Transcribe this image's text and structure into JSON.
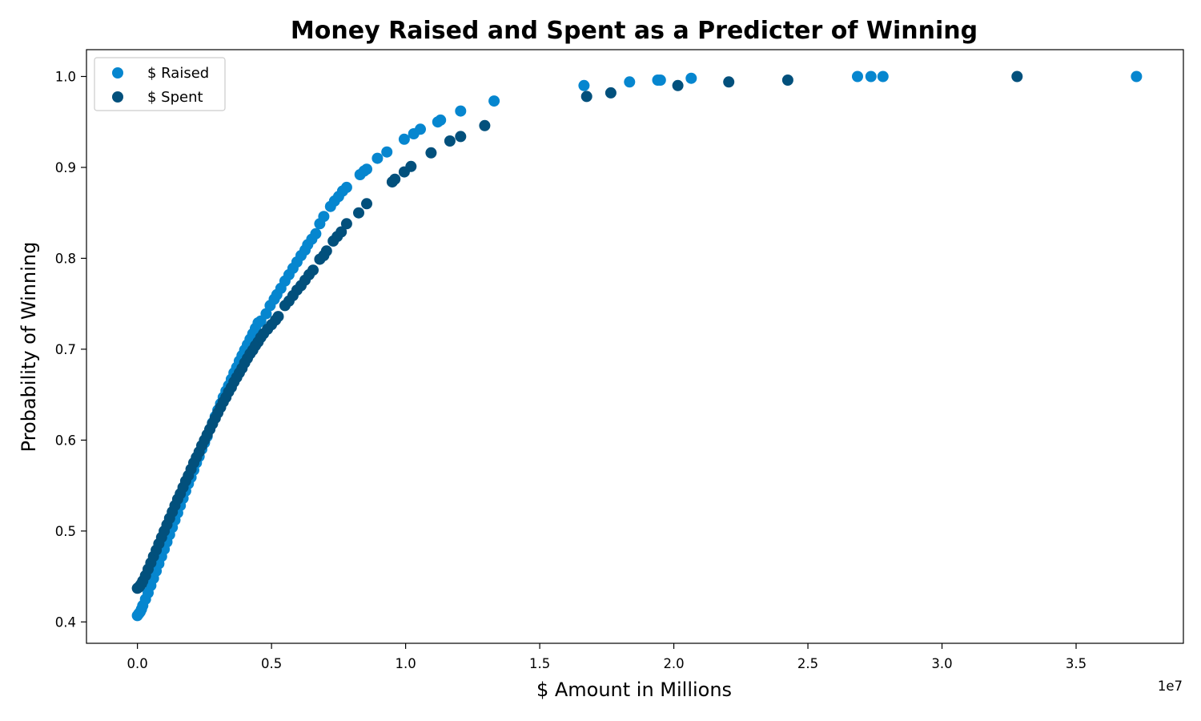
{
  "chart_data": {
    "type": "scatter",
    "title": "Money Raised and Spent as a Predicter of Winning",
    "xlabel": "$ Amount in Millions",
    "ylabel": "Probability of Winning",
    "x_offset_label": "1e7",
    "xlim": [
      -1900000,
      39000000
    ],
    "ylim": [
      0.3765,
      1.0295
    ],
    "x_ticks": [
      0,
      5000000,
      10000000,
      15000000,
      20000000,
      25000000,
      30000000,
      35000000
    ],
    "x_tick_labels": [
      "0.0",
      "0.5",
      "1.0",
      "1.5",
      "2.0",
      "2.5",
      "3.0",
      "3.5"
    ],
    "y_ticks": [
      0.4,
      0.5,
      0.6,
      0.7,
      0.8,
      0.9,
      1.0
    ],
    "y_tick_labels": [
      "0.4",
      "0.5",
      "0.6",
      "0.7",
      "0.8",
      "0.9",
      "1.0"
    ],
    "grid": false,
    "legend_position": "upper-left",
    "series": [
      {
        "name": "$ Raised",
        "color": "#0686cf",
        "points": [
          [
            0,
            0.407
          ],
          [
            50000,
            0.409
          ],
          [
            100000,
            0.411
          ],
          [
            150000,
            0.414
          ],
          [
            200000,
            0.418
          ],
          [
            300000,
            0.425
          ],
          [
            400000,
            0.432
          ],
          [
            500000,
            0.44
          ],
          [
            600000,
            0.448
          ],
          [
            700000,
            0.456
          ],
          [
            800000,
            0.464
          ],
          [
            900000,
            0.472
          ],
          [
            1000000,
            0.48
          ],
          [
            1100000,
            0.488
          ],
          [
            1200000,
            0.496
          ],
          [
            1300000,
            0.504
          ],
          [
            1400000,
            0.512
          ],
          [
            1500000,
            0.52
          ],
          [
            1600000,
            0.528
          ],
          [
            1700000,
            0.536
          ],
          [
            1800000,
            0.544
          ],
          [
            1900000,
            0.552
          ],
          [
            2000000,
            0.559
          ],
          [
            2100000,
            0.567
          ],
          [
            2200000,
            0.575
          ],
          [
            2300000,
            0.582
          ],
          [
            2400000,
            0.59
          ],
          [
            2500000,
            0.597
          ],
          [
            2600000,
            0.604
          ],
          [
            2700000,
            0.612
          ],
          [
            2800000,
            0.619
          ],
          [
            2900000,
            0.626
          ],
          [
            3000000,
            0.633
          ],
          [
            3100000,
            0.64
          ],
          [
            3200000,
            0.647
          ],
          [
            3300000,
            0.654
          ],
          [
            3400000,
            0.66
          ],
          [
            3500000,
            0.667
          ],
          [
            3600000,
            0.674
          ],
          [
            3700000,
            0.68
          ],
          [
            3800000,
            0.687
          ],
          [
            3900000,
            0.693
          ],
          [
            4000000,
            0.699
          ],
          [
            4100000,
            0.705
          ],
          [
            4200000,
            0.711
          ],
          [
            4300000,
            0.717
          ],
          [
            4400000,
            0.723
          ],
          [
            4500000,
            0.729
          ],
          [
            4600000,
            0.731
          ],
          [
            4800000,
            0.739
          ],
          [
            4950000,
            0.748
          ],
          [
            5100000,
            0.755
          ],
          [
            5200000,
            0.76
          ],
          [
            5350000,
            0.767
          ],
          [
            5500000,
            0.775
          ],
          [
            5650000,
            0.782
          ],
          [
            5800000,
            0.789
          ],
          [
            5950000,
            0.796
          ],
          [
            6100000,
            0.803
          ],
          [
            6250000,
            0.809
          ],
          [
            6350000,
            0.815
          ],
          [
            6500000,
            0.821
          ],
          [
            6650000,
            0.827
          ],
          [
            6800000,
            0.838
          ],
          [
            6950000,
            0.846
          ],
          [
            7200000,
            0.857
          ],
          [
            7350000,
            0.863
          ],
          [
            7500000,
            0.868
          ],
          [
            7650000,
            0.874
          ],
          [
            7800000,
            0.878
          ],
          [
            8300000,
            0.892
          ],
          [
            8450000,
            0.896
          ],
          [
            8550000,
            0.898
          ],
          [
            8950000,
            0.91
          ],
          [
            9300000,
            0.917
          ],
          [
            9950000,
            0.931
          ],
          [
            10300000,
            0.937
          ],
          [
            10550000,
            0.942
          ],
          [
            11200000,
            0.95
          ],
          [
            11300000,
            0.952
          ],
          [
            12050000,
            0.962
          ],
          [
            13300000,
            0.973
          ],
          [
            16650000,
            0.99
          ],
          [
            18350000,
            0.994
          ],
          [
            19400000,
            0.996
          ],
          [
            19500000,
            0.996
          ],
          [
            20650000,
            0.998
          ],
          [
            26850000,
            1.0
          ],
          [
            27350000,
            1.0
          ],
          [
            27800000,
            1.0
          ],
          [
            37250000,
            1.0
          ]
        ]
      },
      {
        "name": "$ Spent",
        "color": "#02507c",
        "points": [
          [
            0,
            0.437
          ],
          [
            50000,
            0.438
          ],
          [
            100000,
            0.44
          ],
          [
            150000,
            0.442
          ],
          [
            200000,
            0.445
          ],
          [
            300000,
            0.451
          ],
          [
            400000,
            0.458
          ],
          [
            500000,
            0.465
          ],
          [
            600000,
            0.472
          ],
          [
            700000,
            0.479
          ],
          [
            800000,
            0.486
          ],
          [
            900000,
            0.493
          ],
          [
            1000000,
            0.5
          ],
          [
            1100000,
            0.507
          ],
          [
            1200000,
            0.514
          ],
          [
            1300000,
            0.521
          ],
          [
            1400000,
            0.528
          ],
          [
            1500000,
            0.535
          ],
          [
            1600000,
            0.541
          ],
          [
            1700000,
            0.548
          ],
          [
            1800000,
            0.555
          ],
          [
            1900000,
            0.561
          ],
          [
            2000000,
            0.568
          ],
          [
            2100000,
            0.575
          ],
          [
            2200000,
            0.581
          ],
          [
            2300000,
            0.587
          ],
          [
            2400000,
            0.594
          ],
          [
            2500000,
            0.6
          ],
          [
            2600000,
            0.606
          ],
          [
            2700000,
            0.612
          ],
          [
            2800000,
            0.618
          ],
          [
            2900000,
            0.624
          ],
          [
            3000000,
            0.63
          ],
          [
            3100000,
            0.636
          ],
          [
            3200000,
            0.642
          ],
          [
            3300000,
            0.647
          ],
          [
            3400000,
            0.653
          ],
          [
            3500000,
            0.658
          ],
          [
            3600000,
            0.664
          ],
          [
            3700000,
            0.669
          ],
          [
            3800000,
            0.674
          ],
          [
            3900000,
            0.679
          ],
          [
            4000000,
            0.685
          ],
          [
            4100000,
            0.69
          ],
          [
            4200000,
            0.695
          ],
          [
            4300000,
            0.699
          ],
          [
            4400000,
            0.704
          ],
          [
            4500000,
            0.708
          ],
          [
            4600000,
            0.713
          ],
          [
            4700000,
            0.717
          ],
          [
            4850000,
            0.722
          ],
          [
            5000000,
            0.727
          ],
          [
            5150000,
            0.732
          ],
          [
            5250000,
            0.736
          ],
          [
            5500000,
            0.748
          ],
          [
            5650000,
            0.753
          ],
          [
            5800000,
            0.759
          ],
          [
            5950000,
            0.765
          ],
          [
            6100000,
            0.77
          ],
          [
            6250000,
            0.776
          ],
          [
            6400000,
            0.782
          ],
          [
            6550000,
            0.787
          ],
          [
            6800000,
            0.799
          ],
          [
            6950000,
            0.803
          ],
          [
            7050000,
            0.808
          ],
          [
            7300000,
            0.819
          ],
          [
            7450000,
            0.824
          ],
          [
            7600000,
            0.829
          ],
          [
            7800000,
            0.838
          ],
          [
            8250000,
            0.85
          ],
          [
            8550000,
            0.86
          ],
          [
            9500000,
            0.884
          ],
          [
            9600000,
            0.887
          ],
          [
            9950000,
            0.895
          ],
          [
            10200000,
            0.901
          ],
          [
            10950000,
            0.916
          ],
          [
            11650000,
            0.929
          ],
          [
            12050000,
            0.934
          ],
          [
            12950000,
            0.946
          ],
          [
            16750000,
            0.978
          ],
          [
            17650000,
            0.982
          ],
          [
            20150000,
            0.99
          ],
          [
            22050000,
            0.994
          ],
          [
            24250000,
            0.996
          ],
          [
            32800000,
            1.0
          ]
        ]
      }
    ]
  }
}
